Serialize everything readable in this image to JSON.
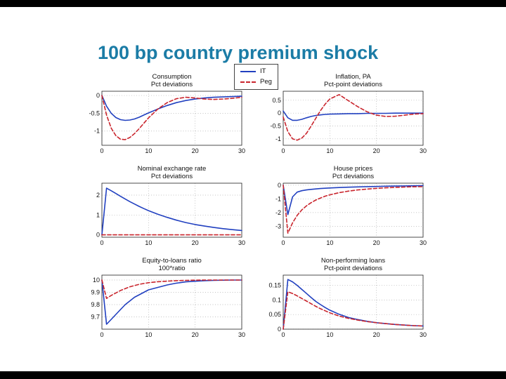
{
  "slide": {
    "title": "100 bp country premium shock"
  },
  "colors": {
    "title_text": "#1b7ca6",
    "axis": "#222222",
    "grid": "#b0b0b0",
    "it_line": "#2140c0",
    "peg_line": "#c9252d"
  },
  "legend": {
    "items": [
      {
        "label": "IT",
        "color": "#2140c0",
        "style": "solid"
      },
      {
        "label": "Peg",
        "color": "#c9252d",
        "style": "dashed"
      }
    ]
  },
  "chart_data": [
    {
      "type": "line",
      "title": "Consumption",
      "subtitle": "Pct deviations",
      "xlim": [
        0,
        30
      ],
      "ylim": [
        -1.4,
        0.12
      ],
      "xticks": [
        0,
        10,
        20,
        30
      ],
      "yticks": [
        0,
        -0.5,
        -1
      ],
      "x": [
        0,
        1,
        2,
        3,
        4,
        5,
        6,
        7,
        8,
        9,
        10,
        12,
        14,
        16,
        18,
        20,
        22,
        24,
        26,
        28,
        30
      ],
      "series": [
        {
          "name": "IT",
          "values": [
            0,
            -0.3,
            -0.5,
            -0.62,
            -0.68,
            -0.7,
            -0.69,
            -0.66,
            -0.61,
            -0.55,
            -0.49,
            -0.38,
            -0.28,
            -0.2,
            -0.14,
            -0.1,
            -0.07,
            -0.05,
            -0.04,
            -0.03,
            -0.02
          ]
        },
        {
          "name": "Peg",
          "values": [
            0,
            -0.55,
            -0.92,
            -1.13,
            -1.23,
            -1.24,
            -1.18,
            -1.07,
            -0.93,
            -0.78,
            -0.63,
            -0.38,
            -0.2,
            -0.09,
            -0.05,
            -0.07,
            -0.1,
            -0.11,
            -0.1,
            -0.08,
            -0.05
          ]
        }
      ]
    },
    {
      "type": "line",
      "title": "Inflation, PA",
      "subtitle": "Pct-point deviations",
      "xlim": [
        0,
        30
      ],
      "ylim": [
        -1.25,
        0.85
      ],
      "xticks": [
        0,
        10,
        20,
        30
      ],
      "yticks": [
        0.5,
        0,
        -0.5,
        -1
      ],
      "x": [
        0,
        1,
        2,
        3,
        4,
        5,
        6,
        7,
        8,
        9,
        10,
        12,
        14,
        16,
        18,
        20,
        22,
        24,
        26,
        28,
        30
      ],
      "series": [
        {
          "name": "IT",
          "values": [
            0.08,
            -0.18,
            -0.28,
            -0.28,
            -0.24,
            -0.18,
            -0.13,
            -0.09,
            -0.07,
            -0.05,
            -0.04,
            -0.03,
            -0.02,
            -0.02,
            -0.01,
            -0.01,
            -0.01,
            0,
            0,
            0,
            0
          ]
        },
        {
          "name": "Peg",
          "values": [
            -0.15,
            -0.72,
            -1.0,
            -1.05,
            -0.97,
            -0.78,
            -0.5,
            -0.2,
            0.1,
            0.35,
            0.55,
            0.72,
            0.48,
            0.25,
            0.05,
            -0.08,
            -0.13,
            -0.12,
            -0.08,
            -0.04,
            -0.02
          ]
        }
      ]
    },
    {
      "type": "line",
      "title": "Nominal exchange rate",
      "subtitle": "Pct deviations",
      "xlim": [
        0,
        30
      ],
      "ylim": [
        -0.12,
        2.6
      ],
      "xticks": [
        0,
        10,
        20,
        30
      ],
      "yticks": [
        2,
        1,
        0
      ],
      "x": [
        0,
        1,
        2,
        3,
        4,
        5,
        6,
        7,
        8,
        9,
        10,
        12,
        14,
        16,
        18,
        20,
        22,
        24,
        26,
        28,
        30
      ],
      "series": [
        {
          "name": "IT",
          "values": [
            0,
            2.35,
            2.22,
            2.08,
            1.94,
            1.8,
            1.67,
            1.55,
            1.43,
            1.32,
            1.22,
            1.04,
            0.88,
            0.74,
            0.62,
            0.52,
            0.44,
            0.37,
            0.31,
            0.26,
            0.22
          ]
        },
        {
          "name": "Peg",
          "values": [
            0,
            0,
            0,
            0,
            0,
            0,
            0,
            0,
            0,
            0,
            0,
            0,
            0,
            0,
            0,
            0,
            0,
            0,
            0,
            0,
            0
          ]
        }
      ]
    },
    {
      "type": "line",
      "title": "House prices",
      "subtitle": "Pct deviations",
      "xlim": [
        0,
        30
      ],
      "ylim": [
        -3.8,
        0.15
      ],
      "xticks": [
        0,
        10,
        20,
        30
      ],
      "yticks": [
        0,
        -1,
        -2,
        -3
      ],
      "x": [
        0,
        1,
        2,
        3,
        4,
        5,
        6,
        7,
        8,
        9,
        10,
        12,
        14,
        16,
        18,
        20,
        22,
        24,
        26,
        28,
        30
      ],
      "series": [
        {
          "name": "IT",
          "values": [
            0,
            -2.15,
            -0.85,
            -0.5,
            -0.4,
            -0.34,
            -0.3,
            -0.27,
            -0.24,
            -0.22,
            -0.2,
            -0.17,
            -0.14,
            -0.12,
            -0.1,
            -0.09,
            -0.07,
            -0.06,
            -0.05,
            -0.04,
            -0.03
          ]
        },
        {
          "name": "Peg",
          "values": [
            0,
            -3.5,
            -2.75,
            -2.2,
            -1.8,
            -1.5,
            -1.27,
            -1.08,
            -0.93,
            -0.8,
            -0.7,
            -0.54,
            -0.43,
            -0.34,
            -0.28,
            -0.23,
            -0.19,
            -0.16,
            -0.13,
            -0.11,
            -0.1
          ]
        }
      ]
    },
    {
      "type": "line",
      "title": "Equity-to-loans ratio",
      "subtitle": "100*ratio",
      "xlim": [
        0,
        30
      ],
      "ylim": [
        9.6,
        10.04
      ],
      "xticks": [
        0,
        10,
        20,
        30
      ],
      "yticks": [
        10,
        9.9,
        9.8,
        9.7
      ],
      "x": [
        0,
        1,
        2,
        3,
        4,
        5,
        6,
        7,
        8,
        9,
        10,
        12,
        14,
        16,
        18,
        20,
        22,
        24,
        26,
        28,
        30
      ],
      "series": [
        {
          "name": "IT",
          "values": [
            10,
            9.64,
            9.68,
            9.72,
            9.76,
            9.8,
            9.83,
            9.86,
            9.88,
            9.9,
            9.92,
            9.94,
            9.96,
            9.975,
            9.985,
            9.99,
            9.995,
            9.997,
            9.999,
            10,
            10
          ]
        },
        {
          "name": "Peg",
          "values": [
            10,
            9.85,
            9.875,
            9.895,
            9.915,
            9.93,
            9.945,
            9.955,
            9.965,
            9.972,
            9.978,
            9.986,
            9.991,
            9.995,
            9.997,
            9.999,
            10,
            10,
            10,
            10,
            10
          ]
        }
      ]
    },
    {
      "type": "line",
      "title": "Non-performing loans",
      "subtitle": "Pct-point deviations",
      "xlim": [
        0,
        30
      ],
      "ylim": [
        0,
        0.185
      ],
      "xticks": [
        0,
        10,
        20,
        30
      ],
      "yticks": [
        0.15,
        0.1,
        0.05,
        0
      ],
      "x": [
        0,
        1,
        2,
        3,
        4,
        5,
        6,
        7,
        8,
        9,
        10,
        12,
        14,
        16,
        18,
        20,
        22,
        24,
        26,
        28,
        30
      ],
      "series": [
        {
          "name": "IT",
          "values": [
            0,
            0.17,
            0.162,
            0.15,
            0.136,
            0.122,
            0.108,
            0.095,
            0.084,
            0.074,
            0.065,
            0.051,
            0.04,
            0.033,
            0.027,
            0.022,
            0.019,
            0.016,
            0.014,
            0.012,
            0.011
          ]
        },
        {
          "name": "Peg",
          "values": [
            0,
            0.128,
            0.122,
            0.114,
            0.105,
            0.096,
            0.087,
            0.078,
            0.07,
            0.063,
            0.056,
            0.045,
            0.037,
            0.031,
            0.026,
            0.022,
            0.019,
            0.016,
            0.014,
            0.012,
            0.011
          ]
        }
      ]
    }
  ]
}
